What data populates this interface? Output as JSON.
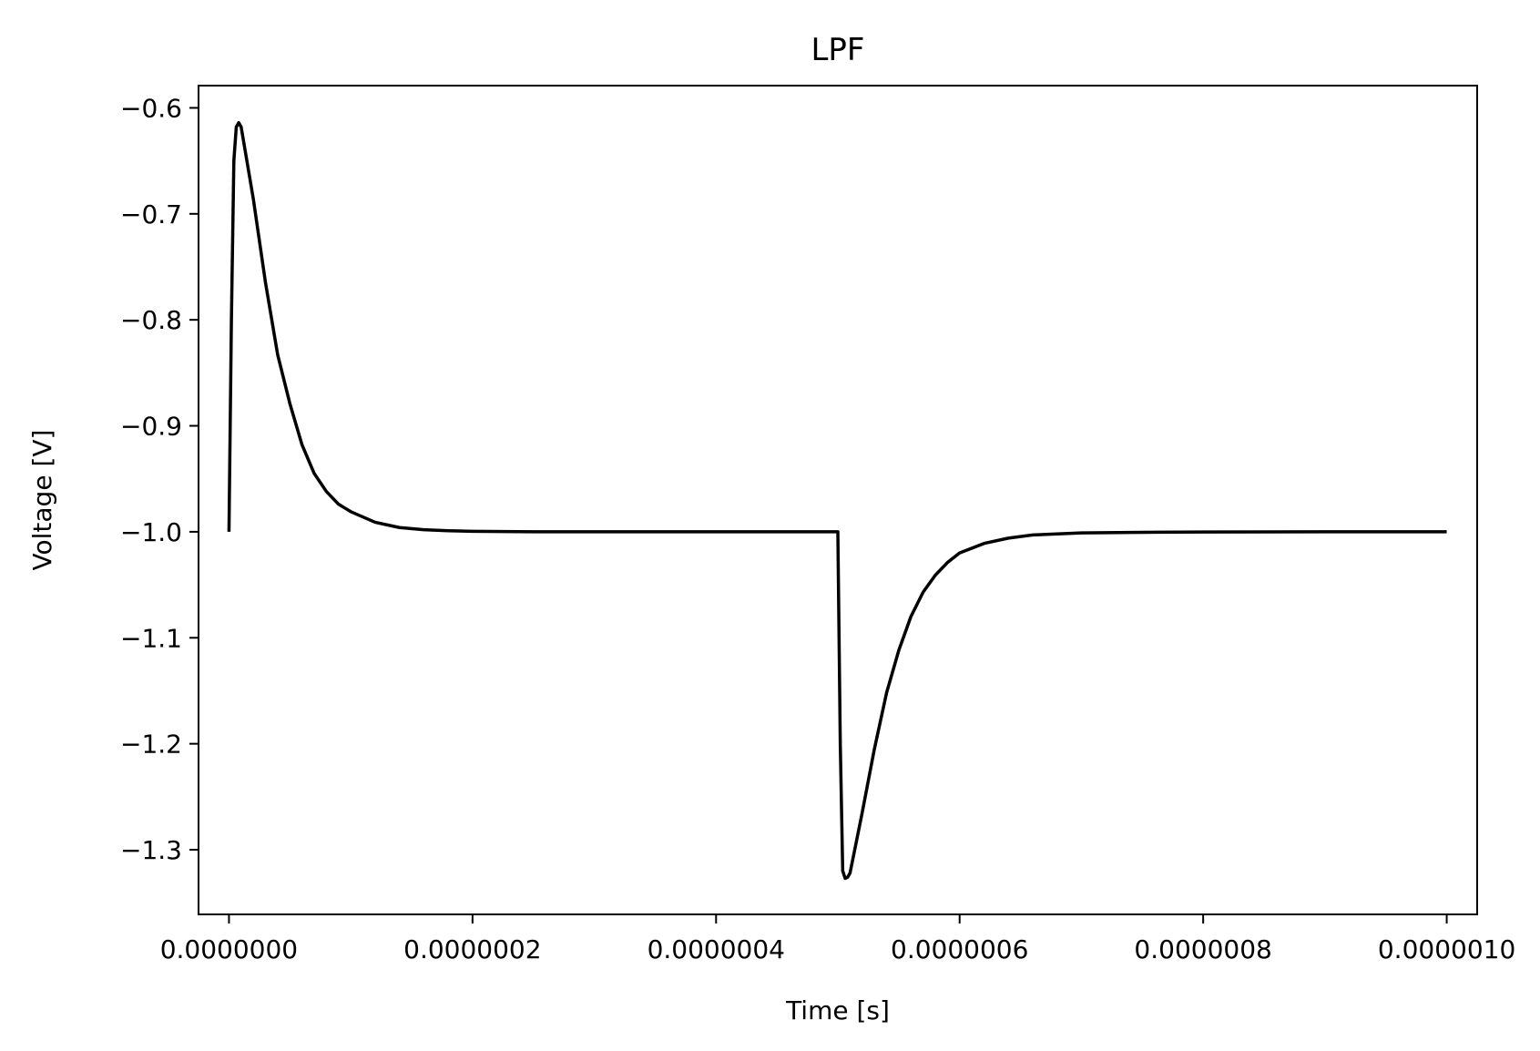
{
  "chart_data": {
    "type": "line",
    "title": "LPF",
    "xlabel": "Time [s]",
    "ylabel": "Voltage [V]",
    "xlim": [
      -2.5e-08,
      1.025e-06
    ],
    "ylim": [
      -1.361,
      -0.579
    ],
    "grid": false,
    "x_ticks": [
      {
        "value": 0,
        "label": "0.0000000"
      },
      {
        "value": 2e-07,
        "label": "0.0000002"
      },
      {
        "value": 4e-07,
        "label": "0.0000004"
      },
      {
        "value": 6e-07,
        "label": "0.0000006"
      },
      {
        "value": 8e-07,
        "label": "0.0000008"
      },
      {
        "value": 1e-06,
        "label": "0.0000010"
      }
    ],
    "y_ticks": [
      {
        "value": -0.6,
        "label": "−0.6"
      },
      {
        "value": -0.7,
        "label": "−0.7"
      },
      {
        "value": -0.8,
        "label": "−0.8"
      },
      {
        "value": -0.9,
        "label": "−0.9"
      },
      {
        "value": -1.0,
        "label": "−1.0"
      },
      {
        "value": -1.1,
        "label": "−1.1"
      },
      {
        "value": -1.2,
        "label": "−1.2"
      },
      {
        "value": -1.3,
        "label": "−1.3"
      }
    ],
    "series": [
      {
        "color": "#000000",
        "x": [
          0,
          2e-09,
          4e-09,
          6e-09,
          8e-09,
          1e-08,
          2e-08,
          3e-08,
          4e-08,
          5e-08,
          6e-08,
          7e-08,
          8e-08,
          9e-08,
          1e-07,
          1.2e-07,
          1.4e-07,
          1.6e-07,
          1.8e-07,
          2e-07,
          2.5e-07,
          3e-07,
          4e-07,
          5e-07,
          5.02e-07,
          5.04e-07,
          5.06e-07,
          5.08e-07,
          5.1e-07,
          5.2e-07,
          5.3e-07,
          5.4e-07,
          5.5e-07,
          5.6e-07,
          5.7e-07,
          5.8e-07,
          5.9e-07,
          6e-07,
          6.2e-07,
          6.4e-07,
          6.6e-07,
          6.8e-07,
          7e-07,
          7.5e-07,
          8e-07,
          9e-07,
          1e-06
        ],
        "y": [
          -1.0,
          -0.8,
          -0.65,
          -0.618,
          -0.614,
          -0.618,
          -0.686,
          -0.765,
          -0.833,
          -0.879,
          -0.918,
          -0.945,
          -0.962,
          -0.974,
          -0.981,
          -0.991,
          -0.996,
          -0.998,
          -0.999,
          -0.9995,
          -1.0,
          -1.0,
          -1.0,
          -1.0,
          -1.2,
          -1.32,
          -1.327,
          -1.326,
          -1.322,
          -1.265,
          -1.205,
          -1.152,
          -1.112,
          -1.08,
          -1.057,
          -1.041,
          -1.029,
          -1.02,
          -1.011,
          -1.006,
          -1.003,
          -1.002,
          -1.001,
          -1.0005,
          -1.0002,
          -1.0,
          -1.0
        ]
      }
    ]
  }
}
